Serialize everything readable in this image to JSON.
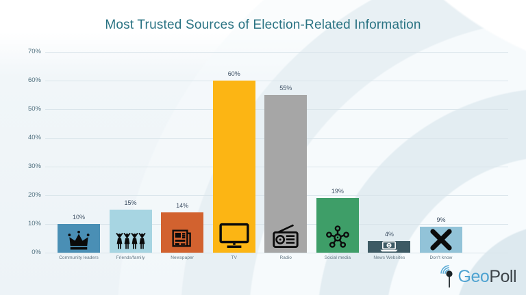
{
  "title": "Most Trusted Sources of Election-Related Information",
  "chart_data": {
    "type": "bar",
    "title": "Most Trusted Sources of Election-Related Information",
    "categories": [
      "Community leaders",
      "Friends/family",
      "Newspaper",
      "TV",
      "Radio",
      "Social media",
      "News Websites",
      "Don't know"
    ],
    "values": [
      10,
      15,
      14,
      60,
      55,
      19,
      4,
      9
    ],
    "value_labels": [
      "10%",
      "15%",
      "14%",
      "60%",
      "55%",
      "19%",
      "4%",
      "9%"
    ],
    "bar_colors": [
      "#4a8fb5",
      "#a7d5e2",
      "#d2622f",
      "#fcb514",
      "#a6a6a6",
      "#3e9e68",
      "#3d5a64",
      "#92c3d8"
    ],
    "icon_names": [
      "crown-icon",
      "people-icon",
      "newspaper-icon",
      "tv-icon",
      "radio-icon",
      "social-network-icon",
      "laptop-globe-icon",
      "x-mark-icon"
    ],
    "y_ticks": [
      "0%",
      "10%",
      "20%",
      "30%",
      "40%",
      "50%",
      "60%",
      "70%"
    ],
    "ylim": [
      0,
      70
    ],
    "grid": true,
    "legend_position": "none",
    "xlabel": "",
    "ylabel": ""
  },
  "logo": {
    "geo": "Geo",
    "poll": "Poll"
  },
  "colors": {
    "title_text": "#2a7383",
    "axis_tick_text": "#50707f",
    "value_label_text": "#3d4f63",
    "category_label_text": "#5f7480",
    "gridline": "#d9e4ea",
    "background": "#edf3f7",
    "logo_geo": "#4fa3d1",
    "logo_poll": "#3d4449"
  }
}
